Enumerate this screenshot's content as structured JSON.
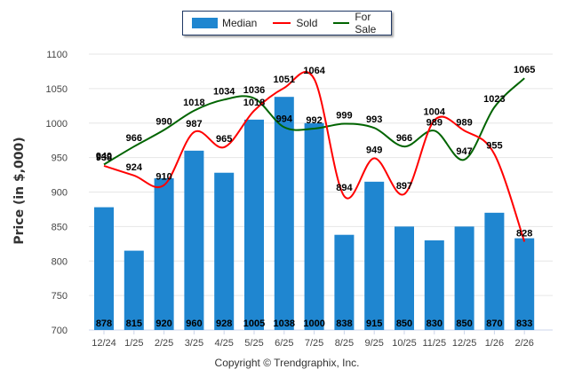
{
  "chart_data": {
    "type": "bar+line",
    "title": "",
    "xlabel": "",
    "ylabel": "Price (in $,000)",
    "ylim": [
      700,
      1100
    ],
    "yticks": [
      700,
      750,
      800,
      850,
      900,
      950,
      1000,
      1050,
      1100
    ],
    "grid": true,
    "legend_position": "top-center",
    "categories": [
      "12/24",
      "1/25",
      "2/25",
      "3/25",
      "4/25",
      "5/25",
      "6/25",
      "7/25",
      "8/25",
      "9/25",
      "10/25",
      "11/25",
      "12/25",
      "1/26",
      "2/26"
    ],
    "series": [
      {
        "name": "Median",
        "type": "bar",
        "color": "#1f86d0",
        "values": [
          878,
          815,
          920,
          960,
          928,
          1005,
          1038,
          1000,
          838,
          915,
          850,
          830,
          850,
          870,
          833
        ]
      },
      {
        "name": "Sold",
        "type": "line",
        "color": "#ff0000",
        "values": [
          938,
          924,
          910,
          987,
          965,
          1018,
          1051,
          1064,
          894,
          949,
          897,
          1004,
          989,
          955,
          828
        ]
      },
      {
        "name": "For Sale",
        "type": "line",
        "color": "#006400",
        "values": [
          940,
          966,
          990,
          1018,
          1034,
          1036,
          994,
          992,
          999,
          993,
          966,
          989,
          947,
          1023,
          1065
        ]
      }
    ]
  },
  "legend": {
    "items": [
      {
        "label": "Median",
        "color": "#1f86d0"
      },
      {
        "label": "Sold",
        "color": "#ff0000"
      },
      {
        "label": "For Sale",
        "color": "#006400"
      }
    ]
  },
  "footer": {
    "copyright": "Copyright © Trendgraphix, Inc."
  }
}
